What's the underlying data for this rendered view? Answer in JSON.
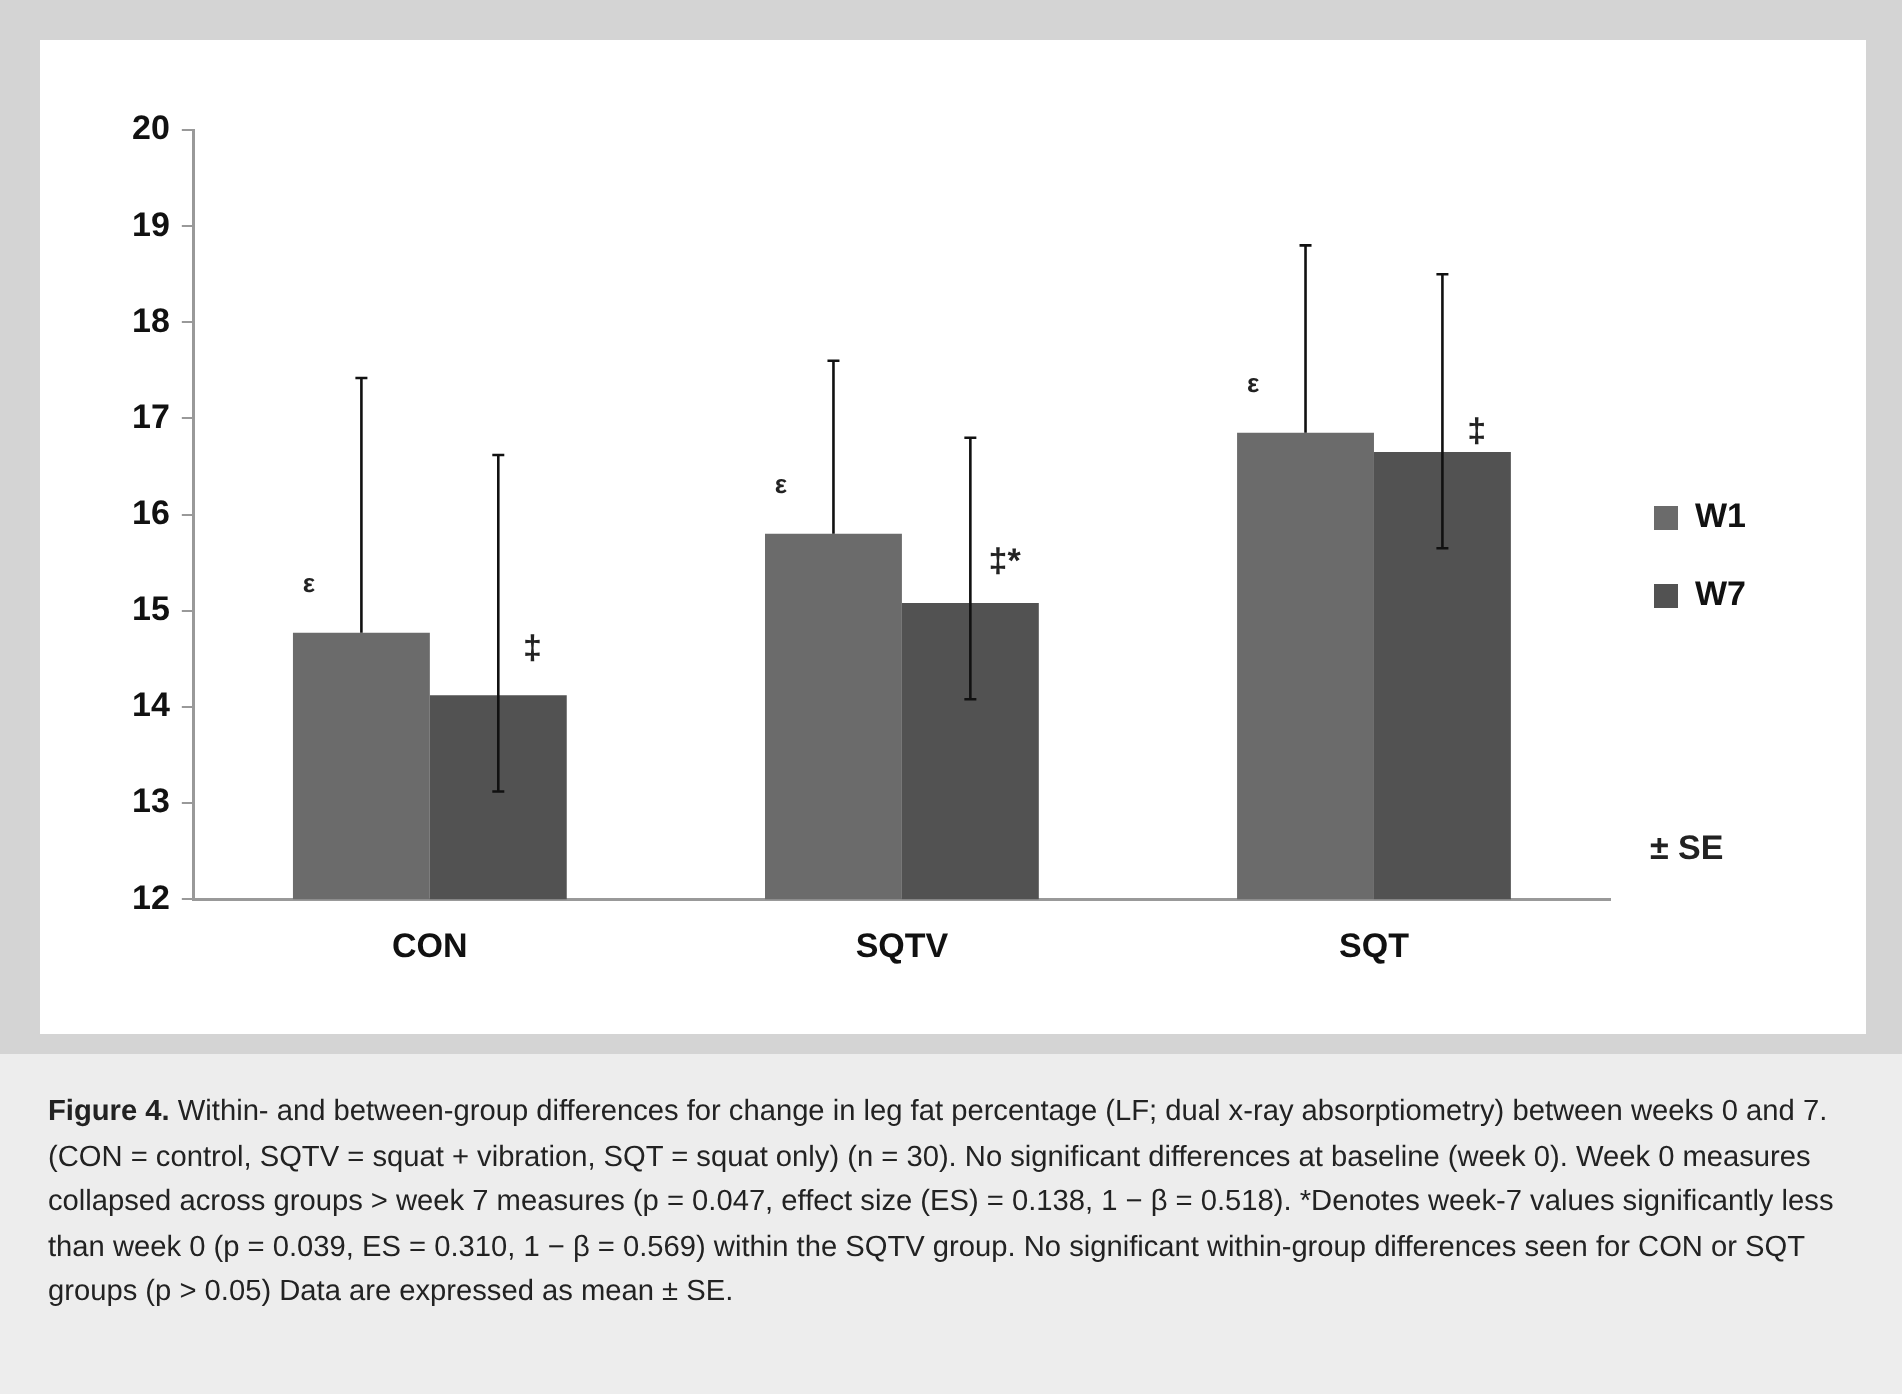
{
  "chart_data": {
    "type": "bar",
    "categories": [
      "CON",
      "SQTV",
      "SQT"
    ],
    "series": [
      {
        "name": "W1",
        "color": "#6b6b6b",
        "values": [
          14.77,
          15.8,
          16.85
        ],
        "errors": [
          [
            14.77,
            17.42
          ],
          [
            15.8,
            17.6
          ],
          [
            16.85,
            18.8
          ]
        ]
      },
      {
        "name": "W7",
        "color": "#525252",
        "values": [
          14.12,
          15.08,
          16.65
        ],
        "errors": [
          [
            13.12,
            16.62
          ],
          [
            14.08,
            16.8
          ],
          [
            15.65,
            18.5
          ]
        ]
      }
    ],
    "ylim": [
      12,
      20
    ],
    "yticks": [
      12,
      13,
      14,
      15,
      16,
      17,
      18,
      19,
      20
    ],
    "grid": false,
    "legend": "right",
    "annotations": [
      "± SE",
      "ε",
      {
        "text": "‡",
        "x": "CON",
        "y": 14.6
      },
      "ε",
      {
        "text": "‡*",
        "x": "SQTV",
        "y": 15.5
      },
      "ε",
      {
        "text": "‡",
        "x": "SQT",
        "y": 16.85
      },
      "Figure 4. Within- and between-group differences for change in leg fat percentage (LF; dual x-ray absorptiometry) between weeks 0 and 7. (CON = control, SQTV = squat + vibration, SQT = squat only) (n = 30). No significant differences at baseline (week 0). Week 0 measures collapsed across groups > week 7 measures (p = 0.047, effect size (ES) = 0.138, 1 − β = 0.518). *Denotes week-7 values significantly less than week 0 (p = 0.039, ES = 0.310, 1 − β = 0.569) within the SQTV group. No significant within-group differences seen for CON or SQT groups (p > 0.05) Data are expressed as mean ± SE."
    ]
  }
}
